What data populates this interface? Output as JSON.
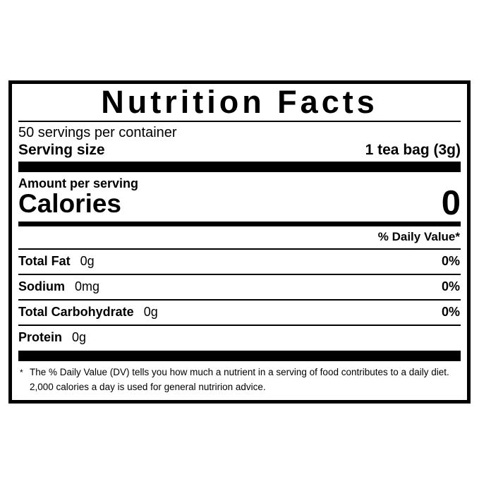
{
  "page": {
    "background_color": "#ffffff"
  },
  "label": {
    "colors": {
      "text": "#000000",
      "background": "#ffffff",
      "border": "#000000"
    },
    "title": "Nutrition Facts",
    "servings_per_container": "50 servings per container",
    "serving_size": {
      "label": "Serving size",
      "value": "1 tea bag (3g)"
    },
    "amount_per_serving_label": "Amount per serving",
    "calories": {
      "label": "Calories",
      "value": "0"
    },
    "daily_value_header": "% Daily Value*",
    "nutrients": [
      {
        "name": "Total Fat",
        "amount": "0g",
        "daily_value": "0%"
      },
      {
        "name": "Sodium",
        "amount": "0mg",
        "daily_value": "0%"
      },
      {
        "name": "Total Carbohydrate",
        "amount": "0g",
        "daily_value": "0%"
      },
      {
        "name": "Protein",
        "amount": "0g",
        "daily_value": ""
      }
    ],
    "footnote": {
      "marker": "*",
      "text": "The % Daily Value (DV) tells you how much a nutrient in a serving of food contributes to a daily diet. 2,000 calories a day is used for general nutririon advice."
    }
  }
}
